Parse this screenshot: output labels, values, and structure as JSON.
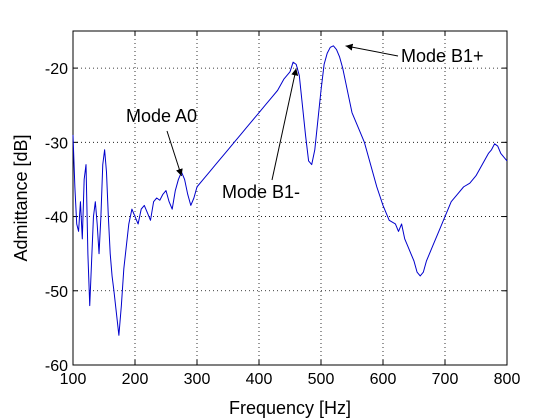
{
  "chart_data": {
    "type": "line",
    "title": "",
    "xlabel": "Frequency [Hz]",
    "ylabel": "Admittance [dB]",
    "xlim": [
      100,
      800
    ],
    "ylim": [
      -60,
      -15
    ],
    "xticks": [
      100,
      200,
      300,
      400,
      500,
      600,
      700,
      800
    ],
    "yticks": [
      -60,
      -50,
      -40,
      -30,
      -20
    ],
    "grid": true,
    "legend": "none",
    "series": [
      {
        "color": "#0000cc",
        "x": [
          100,
          103,
          106,
          109,
          112,
          115,
          118,
          121,
          124,
          127,
          130,
          133,
          136,
          139,
          142,
          145,
          148,
          151,
          154,
          157,
          160,
          163,
          166,
          170,
          174,
          178,
          182,
          186,
          190,
          195,
          200,
          205,
          210,
          215,
          220,
          225,
          230,
          235,
          240,
          245,
          250,
          255,
          260,
          265,
          270,
          275,
          280,
          285,
          290,
          295,
          300,
          310,
          320,
          330,
          340,
          350,
          360,
          370,
          380,
          390,
          400,
          410,
          420,
          430,
          440,
          450,
          455,
          460,
          465,
          470,
          475,
          480,
          485,
          490,
          495,
          500,
          505,
          510,
          515,
          520,
          525,
          530,
          535,
          540,
          545,
          550,
          560,
          570,
          580,
          590,
          600,
          610,
          620,
          625,
          630,
          635,
          640,
          645,
          650,
          655,
          660,
          665,
          670,
          680,
          690,
          700,
          710,
          720,
          730,
          740,
          750,
          760,
          770,
          775,
          780,
          785,
          790,
          800
        ],
        "y": [
          -29,
          -36,
          -41,
          -42,
          -38,
          -43,
          -35,
          -33,
          -45,
          -52,
          -46,
          -40,
          -38,
          -41,
          -45,
          -40,
          -33,
          -31,
          -34,
          -40,
          -45,
          -48,
          -50,
          -53,
          -56,
          -52,
          -47,
          -44,
          -41,
          -39,
          -40,
          -41,
          -39,
          -38.5,
          -39.5,
          -40.5,
          -38,
          -37.5,
          -37.8,
          -37,
          -36.5,
          -38,
          -39,
          -36.5,
          -35,
          -34,
          -35,
          -37,
          -38.5,
          -37.5,
          -36,
          -35,
          -34,
          -33,
          -32,
          -31,
          -30,
          -29,
          -28,
          -27,
          -26,
          -25,
          -24,
          -23,
          -21.5,
          -20.5,
          -19.2,
          -19.5,
          -21,
          -25,
          -29,
          -32.5,
          -33,
          -31,
          -27,
          -23,
          -19.5,
          -18,
          -17.2,
          -17,
          -17.5,
          -18.5,
          -20,
          -22,
          -24,
          -26,
          -28,
          -30,
          -33,
          -36,
          -38.5,
          -40.5,
          -41,
          -42,
          -41,
          -43,
          -44,
          -45,
          -46,
          -47.5,
          -48,
          -47.5,
          -46,
          -44,
          -42,
          -40,
          -38,
          -37,
          -36,
          -35.5,
          -34.5,
          -33,
          -31.5,
          -31,
          -30.2,
          -30.5,
          -31.5,
          -32.5
        ]
      }
    ],
    "annotations": [
      {
        "text": "Mode A0",
        "x": 275,
        "y": -34
      },
      {
        "text": "Mode B1-",
        "x": 460,
        "y": -19.5
      },
      {
        "text": "Mode B1+",
        "x": 530,
        "y": -17
      }
    ]
  }
}
